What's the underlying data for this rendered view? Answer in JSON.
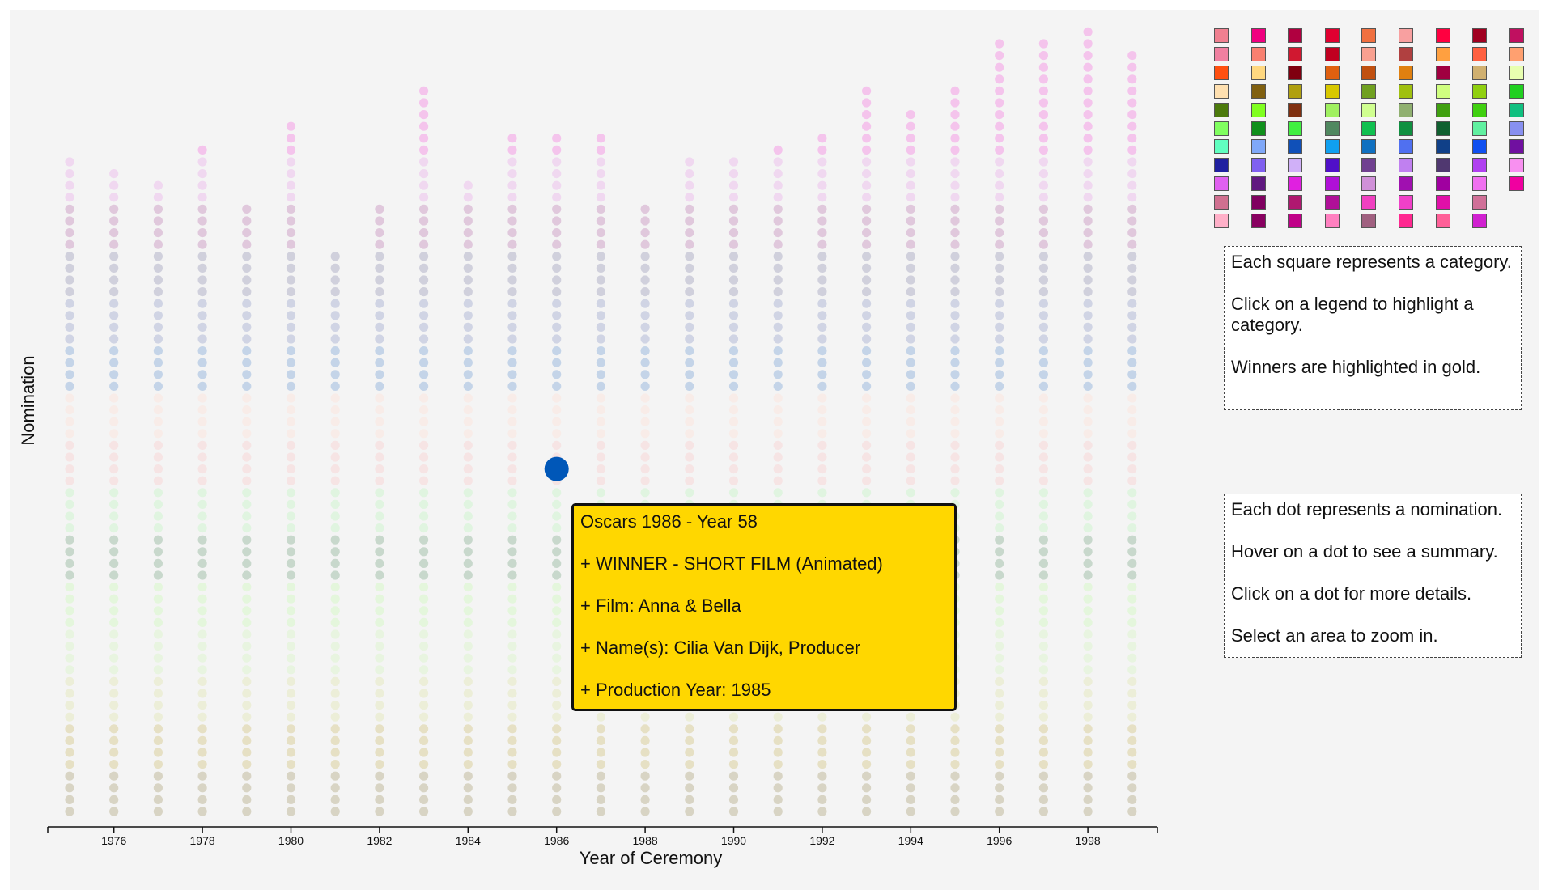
{
  "chart_data": {
    "type": "scatter",
    "title": "",
    "xlabel": "Year of Ceremony",
    "ylabel": "Nomination",
    "xlim": [
      1974.5,
      1999.5
    ],
    "x_ticks": [
      1976,
      1978,
      1980,
      1982,
      1984,
      1986,
      1988,
      1990,
      1992,
      1994,
      1996,
      1998
    ],
    "x_tick_labels": [
      "1976",
      "1978",
      "1980",
      "1982",
      "1984",
      "1986",
      "1988",
      "1990",
      "1992",
      "1994",
      "1996",
      "1998"
    ],
    "years": [
      1975,
      1976,
      1977,
      1978,
      1979,
      1980,
      1981,
      1982,
      1983,
      1984,
      1985,
      1986,
      1987,
      1988,
      1989,
      1990,
      1991,
      1992,
      1993,
      1994,
      1995,
      1996,
      1997,
      1998,
      1999
    ],
    "nominations_per_year": [
      56,
      55,
      54,
      57,
      52,
      59,
      48,
      52,
      62,
      54,
      58,
      58,
      58,
      52,
      56,
      56,
      57,
      58,
      62,
      60,
      62,
      66,
      66,
      67,
      65
    ],
    "dot_color_bands_bottom_to_top": [
      "#d8d4c4",
      "#e6e0c4",
      "#eceed8",
      "#e8f4e0",
      "#e4f6dc",
      "#c8d8cc",
      "#e0f4e0",
      "#f6e4e4",
      "#f8ece8",
      "#c4d4e8",
      "#d0d4e4",
      "#d0d0dc",
      "#e0c8dc",
      "#f0d8f0",
      "#f4c4ec"
    ],
    "highlighted_dot": {
      "year": 1986,
      "nomination": 30,
      "color": "#0057b8"
    },
    "legend_colors": [
      [
        "#f08090",
        "#f080a0",
        "#ff5010",
        "#ffe0b0",
        "#4c7a0c",
        "#80ff60",
        "#60ffc0",
        "#2020a0",
        "#e060f0",
        "#d07090",
        "#ffb0c8"
      ],
      [
        "#f00080",
        "#f88070",
        "#ffd880",
        "#806010",
        "#80ff20",
        "#10901c",
        "#80a8f8",
        "#8060f0",
        "#601880",
        "#800060",
        "#880060"
      ],
      [
        "#b00040",
        "#d01830",
        "#800010",
        "#b0a010",
        "#803010",
        "#40f040",
        "#1050b8",
        "#d0b0f8",
        "#e020e0",
        "#b01870",
        "#c00088"
      ],
      [
        "#e00030",
        "#c00020",
        "#e06010",
        "#d8c800",
        "#a0f060",
        "#508860",
        "#10a0f0",
        "#5010c8",
        "#b010d8",
        "#b01098",
        "#ff80c0"
      ],
      [
        "#f07040",
        "#f8a090",
        "#c05010",
        "#70a020",
        "#d0ff90",
        "#10c050",
        "#1070c0",
        "#704090",
        "#d090d8",
        "#f040c0",
        "#a06080"
      ],
      [
        "#f8a0a0",
        "#b04040",
        "#e08010",
        "#a0c010",
        "#90b070",
        "#109040",
        "#5070f0",
        "#c080f0",
        "#a010b0",
        "#f040c8",
        "#ff2890"
      ],
      [
        "#ff0040",
        "#ffa040",
        "#a00040",
        "#d0ff80",
        "#40a010",
        "#106030",
        "#104088",
        "#503870",
        "#a000a0",
        "#e010a8",
        "#ff6098"
      ],
      [
        "#a00020",
        "#ff6040",
        "#d0b070",
        "#90d010",
        "#40d010",
        "#60f0a0",
        "#1050f0",
        "#b040f0",
        "#f070f0",
        "#d07098",
        "#d020d0"
      ],
      [
        "#c01060",
        "#ffa070",
        "#e8ffb0",
        "#20d020",
        "#10c080",
        "#8890f0",
        "#7010a0",
        "#f890f0",
        "#f000a0"
      ]
    ]
  },
  "info": {
    "legend_help": [
      "Each square represents a category.",
      "Click on a legend to highlight a category.",
      "Winners are highlighted in gold."
    ],
    "dot_help": [
      "Each dot represents a nomination.",
      "Hover on a dot to see a summary.",
      "Click on a dot for more details.",
      "Select an area to zoom in."
    ]
  },
  "tooltip": {
    "title": "Oscars 1986 - Year 58",
    "award": "+ WINNER - SHORT FILM (Animated)",
    "film": "+ Film: Anna & Bella",
    "names": "+ Name(s): Cilia Van Dijk, Producer",
    "production_year": "+ Production Year: 1985"
  },
  "colors": {
    "background": "#f4f4f4",
    "tooltip_bg": "#ffd700",
    "highlight_dot": "#0057b8",
    "axis": "#111111"
  }
}
